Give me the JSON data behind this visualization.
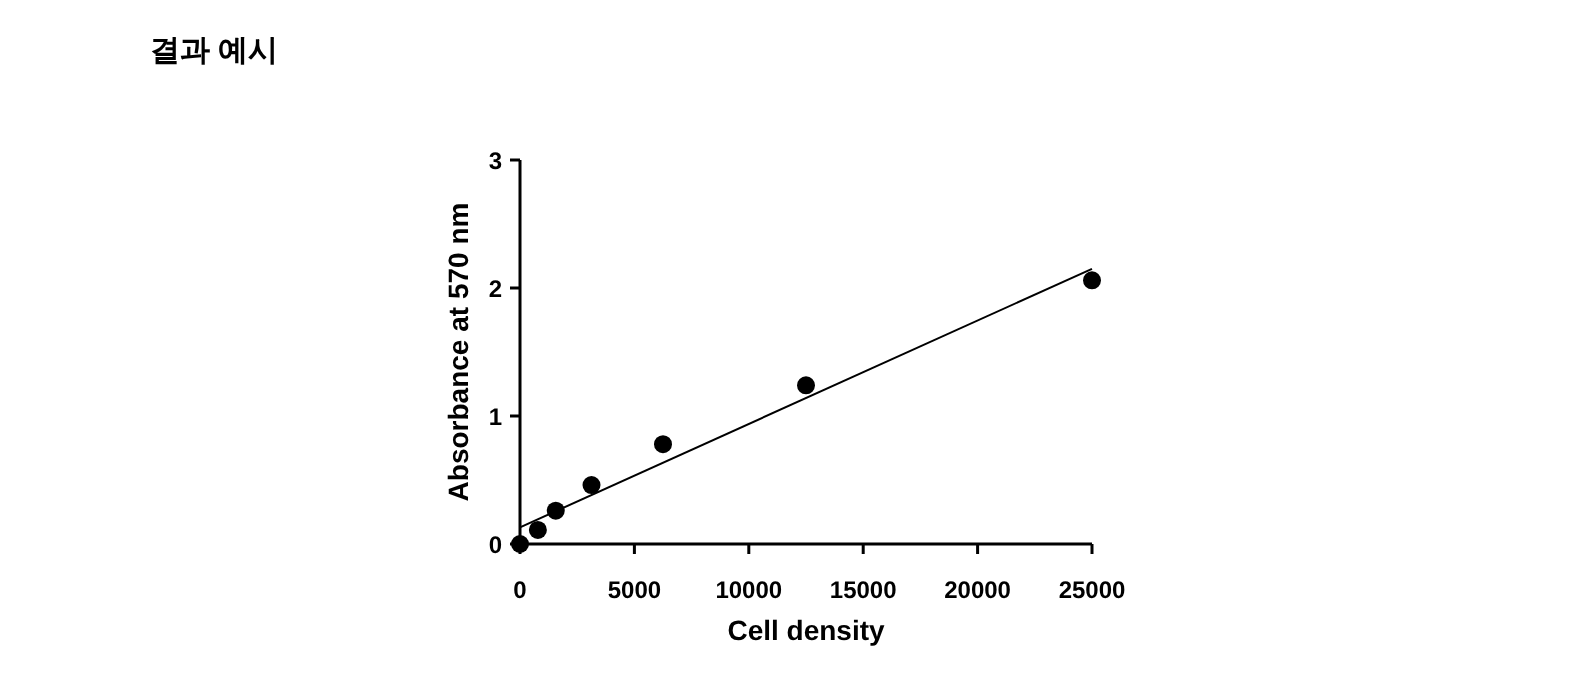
{
  "chart_data": {
    "type": "scatter",
    "title": "결과 예시",
    "xlabel": "Cell density",
    "ylabel": "Absorbance at 570 nm",
    "grid": false,
    "series": [
      {
        "color": "#000000",
        "marker": "circle",
        "x": [
          0,
          781,
          1563,
          3125,
          6250,
          12500,
          25000
        ],
        "values": [
          0,
          0.11,
          0.26,
          0.46,
          0.78,
          1.24,
          2.06
        ]
      },
      {
        "type": "line",
        "color": "#000000",
        "marker": "none",
        "x": [
          0,
          25000
        ],
        "values": [
          0.13,
          2.15
        ]
      }
    ],
    "xlim": [
      0,
      25000
    ],
    "xticks": [
      0,
      5000,
      10000,
      15000,
      20000,
      25000
    ],
    "ylim": [
      0,
      3
    ],
    "yticks": [
      0,
      1,
      2,
      3
    ]
  }
}
